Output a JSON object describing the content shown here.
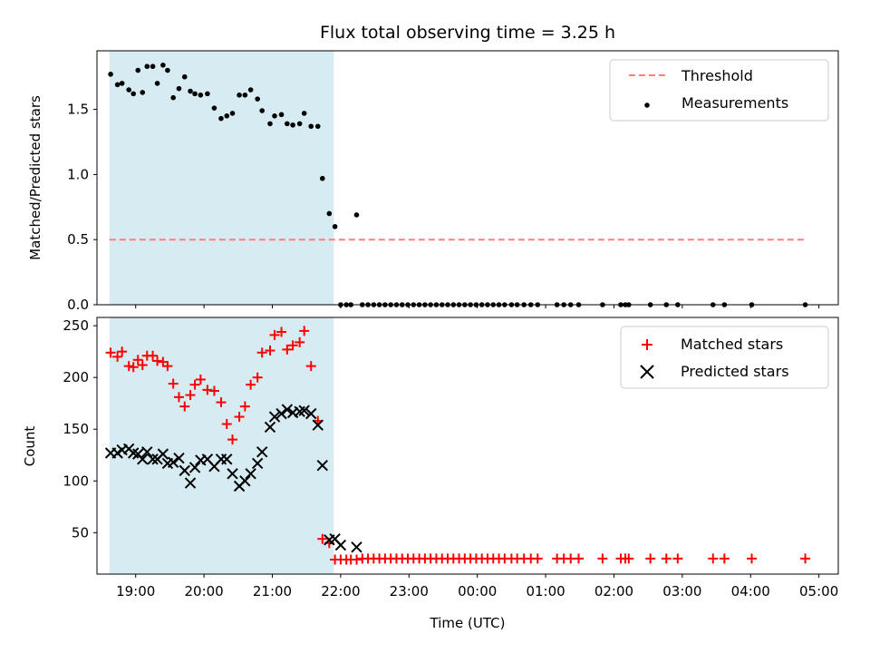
{
  "chart_data": [
    {
      "type": "scatter",
      "title": "Flux total observing time = 3.25 h",
      "ylabel": "Matched/Predicted stars",
      "xlabel": "",
      "xlim": [
        "18:26",
        "05:17"
      ],
      "ylim": [
        0,
        1.95
      ],
      "yticks": [
        "0.0",
        "0.5",
        "1.0",
        "1.5"
      ],
      "shaded_region": [
        "18:37",
        "21:54"
      ],
      "shade_color": "#add8e6",
      "threshold": {
        "name": "Threshold",
        "value": 0.5,
        "x_range": [
          "18:37",
          "04:48"
        ],
        "color": "#ff7f7f"
      },
      "legend": {
        "placement": "top-right",
        "entries": [
          "Threshold",
          "Measurements"
        ]
      },
      "series": [
        {
          "name": "Measurements",
          "color": "#000000",
          "points": [
            [
              "18:38",
              1.77
            ],
            [
              "18:44",
              1.69
            ],
            [
              "18:48",
              1.7
            ],
            [
              "18:54",
              1.65
            ],
            [
              "18:58",
              1.62
            ],
            [
              "19:02",
              1.8
            ],
            [
              "19:06",
              1.63
            ],
            [
              "19:10",
              1.83
            ],
            [
              "19:15",
              1.83
            ],
            [
              "19:19",
              1.7
            ],
            [
              "19:24",
              1.84
            ],
            [
              "19:28",
              1.8
            ],
            [
              "19:33",
              1.59
            ],
            [
              "19:38",
              1.66
            ],
            [
              "19:43",
              1.75
            ],
            [
              "19:48",
              1.64
            ],
            [
              "19:52",
              1.62
            ],
            [
              "19:57",
              1.61
            ],
            [
              "20:03",
              1.62
            ],
            [
              "20:09",
              1.51
            ],
            [
              "20:15",
              1.43
            ],
            [
              "20:20",
              1.45
            ],
            [
              "20:25",
              1.47
            ],
            [
              "20:31",
              1.61
            ],
            [
              "20:36",
              1.61
            ],
            [
              "20:41",
              1.65
            ],
            [
              "20:47",
              1.58
            ],
            [
              "20:51",
              1.49
            ],
            [
              "20:58",
              1.39
            ],
            [
              "21:02",
              1.45
            ],
            [
              "21:08",
              1.46
            ],
            [
              "21:13",
              1.39
            ],
            [
              "21:18",
              1.38
            ],
            [
              "21:24",
              1.39
            ],
            [
              "21:28",
              1.47
            ],
            [
              "21:34",
              1.37
            ],
            [
              "21:40",
              1.37
            ],
            [
              "21:44",
              0.97
            ],
            [
              "21:50",
              0.7
            ],
            [
              "21:55",
              0.6
            ],
            [
              "22:00",
              0.0
            ],
            [
              "22:05",
              0.0
            ],
            [
              "22:09",
              0.0
            ],
            [
              "22:14",
              0.69
            ],
            [
              "22:19",
              0.0
            ],
            [
              "22:24",
              0.0
            ],
            [
              "22:29",
              0.0
            ],
            [
              "22:34",
              0.0
            ],
            [
              "22:39",
              0.0
            ],
            [
              "22:44",
              0.0
            ],
            [
              "22:49",
              0.0
            ],
            [
              "22:54",
              0.0
            ],
            [
              "22:59",
              0.0
            ],
            [
              "23:04",
              0.0
            ],
            [
              "23:09",
              0.0
            ],
            [
              "23:14",
              0.0
            ],
            [
              "23:19",
              0.0
            ],
            [
              "23:24",
              0.0
            ],
            [
              "23:29",
              0.0
            ],
            [
              "23:34",
              0.0
            ],
            [
              "23:39",
              0.0
            ],
            [
              "23:44",
              0.0
            ],
            [
              "23:49",
              0.0
            ],
            [
              "23:54",
              0.0
            ],
            [
              "23:59",
              0.0
            ],
            [
              "00:04",
              0.0
            ],
            [
              "00:09",
              0.0
            ],
            [
              "00:14",
              0.0
            ],
            [
              "00:19",
              0.0
            ],
            [
              "00:24",
              0.0
            ],
            [
              "00:30",
              0.0
            ],
            [
              "00:35",
              0.0
            ],
            [
              "00:41",
              0.0
            ],
            [
              "00:47",
              0.0
            ],
            [
              "00:53",
              0.0
            ],
            [
              "01:10",
              0.0
            ],
            [
              "01:16",
              0.0
            ],
            [
              "01:22",
              0.0
            ],
            [
              "01:29",
              0.0
            ],
            [
              "01:50",
              0.0
            ],
            [
              "02:06",
              0.0
            ],
            [
              "02:10",
              0.0
            ],
            [
              "02:13",
              0.0
            ],
            [
              "02:32",
              0.0
            ],
            [
              "02:46",
              0.0
            ],
            [
              "02:56",
              0.0
            ],
            [
              "03:27",
              0.0
            ],
            [
              "03:37",
              0.0
            ],
            [
              "04:01",
              0.0
            ],
            [
              "04:48",
              0.0
            ]
          ]
        }
      ]
    },
    {
      "type": "scatter",
      "title": "",
      "xlabel": "Time (UTC)",
      "ylabel": "Count",
      "xlim": [
        "18:26",
        "05:17"
      ],
      "ylim": [
        10,
        258
      ],
      "xticks": [
        "19:00",
        "20:00",
        "21:00",
        "22:00",
        "23:00",
        "00:00",
        "01:00",
        "02:00",
        "03:00",
        "04:00",
        "05:00"
      ],
      "yticks": [
        "50",
        "100",
        "150",
        "200",
        "250"
      ],
      "shaded_region": [
        "18:37",
        "21:54"
      ],
      "shade_color": "#add8e6",
      "legend": {
        "placement": "top-right",
        "entries": [
          "Matched stars",
          "Predicted stars"
        ]
      },
      "series": [
        {
          "name": "Matched stars",
          "marker": "+",
          "color": "#ff0000",
          "points": [
            [
              "18:38",
              224
            ],
            [
              "18:44",
              220
            ],
            [
              "18:48",
              225
            ],
            [
              "18:54",
              211
            ],
            [
              "18:58",
              210
            ],
            [
              "19:02",
              217
            ],
            [
              "19:06",
              212
            ],
            [
              "19:10",
              221
            ],
            [
              "19:15",
              221
            ],
            [
              "19:19",
              216
            ],
            [
              "19:24",
              215
            ],
            [
              "19:28",
              211
            ],
            [
              "19:33",
              194
            ],
            [
              "19:38",
              181
            ],
            [
              "19:43",
              172
            ],
            [
              "19:48",
              183
            ],
            [
              "19:52",
              193
            ],
            [
              "19:57",
              198
            ],
            [
              "20:03",
              188
            ],
            [
              "20:09",
              187
            ],
            [
              "20:15",
              176
            ],
            [
              "20:20",
              155
            ],
            [
              "20:25",
              140
            ],
            [
              "20:31",
              162
            ],
            [
              "20:36",
              172
            ],
            [
              "20:41",
              193
            ],
            [
              "20:47",
              200
            ],
            [
              "20:51",
              224
            ],
            [
              "20:58",
              226
            ],
            [
              "21:02",
              241
            ],
            [
              "21:08",
              244
            ],
            [
              "21:13",
              227
            ],
            [
              "21:18",
              231
            ],
            [
              "21:24",
              234
            ],
            [
              "21:28",
              245
            ],
            [
              "21:34",
              211
            ],
            [
              "21:40",
              158
            ],
            [
              "21:44",
              44
            ],
            [
              "21:50",
              40
            ],
            [
              "21:55",
              24
            ],
            [
              "22:00",
              24
            ],
            [
              "22:05",
              24
            ],
            [
              "22:09",
              24
            ],
            [
              "22:14",
              24
            ],
            [
              "22:19",
              25
            ],
            [
              "22:24",
              25
            ],
            [
              "22:29",
              25
            ],
            [
              "22:34",
              25
            ],
            [
              "22:39",
              25
            ],
            [
              "22:44",
              25
            ],
            [
              "22:49",
              25
            ],
            [
              "22:54",
              25
            ],
            [
              "22:59",
              25
            ],
            [
              "23:04",
              25
            ],
            [
              "23:09",
              25
            ],
            [
              "23:14",
              25
            ],
            [
              "23:19",
              25
            ],
            [
              "23:24",
              25
            ],
            [
              "23:29",
              25
            ],
            [
              "23:34",
              25
            ],
            [
              "23:39",
              25
            ],
            [
              "23:44",
              25
            ],
            [
              "23:49",
              25
            ],
            [
              "23:54",
              25
            ],
            [
              "23:59",
              25
            ],
            [
              "00:04",
              25
            ],
            [
              "00:09",
              25
            ],
            [
              "00:14",
              25
            ],
            [
              "00:19",
              25
            ],
            [
              "00:24",
              25
            ],
            [
              "00:30",
              25
            ],
            [
              "00:35",
              25
            ],
            [
              "00:41",
              25
            ],
            [
              "00:47",
              25
            ],
            [
              "00:53",
              25
            ],
            [
              "01:10",
              25
            ],
            [
              "01:16",
              25
            ],
            [
              "01:22",
              25
            ],
            [
              "01:29",
              25
            ],
            [
              "01:50",
              25
            ],
            [
              "02:06",
              25
            ],
            [
              "02:10",
              25
            ],
            [
              "02:13",
              25
            ],
            [
              "02:32",
              25
            ],
            [
              "02:46",
              25
            ],
            [
              "02:56",
              25
            ],
            [
              "03:27",
              25
            ],
            [
              "03:37",
              25
            ],
            [
              "04:01",
              25
            ],
            [
              "04:48",
              25
            ]
          ]
        },
        {
          "name": "Predicted stars",
          "marker": "x",
          "color": "#000000",
          "points": [
            [
              "18:38",
              127
            ],
            [
              "18:44",
              127
            ],
            [
              "18:48",
              130
            ],
            [
              "18:54",
              131
            ],
            [
              "18:58",
              127
            ],
            [
              "19:02",
              126
            ],
            [
              "19:06",
              121
            ],
            [
              "19:10",
              128
            ],
            [
              "19:15",
              121
            ],
            [
              "19:19",
              121
            ],
            [
              "19:24",
              126
            ],
            [
              "19:28",
              117
            ],
            [
              "19:33",
              118
            ],
            [
              "19:38",
              122
            ],
            [
              "19:43",
              110
            ],
            [
              "19:48",
              98
            ],
            [
              "19:52",
              113
            ],
            [
              "19:57",
              120
            ],
            [
              "20:03",
              121
            ],
            [
              "20:09",
              114
            ],
            [
              "20:15",
              121
            ],
            [
              "20:20",
              121
            ],
            [
              "20:25",
              107
            ],
            [
              "20:31",
              95
            ],
            [
              "20:36",
              100
            ],
            [
              "20:41",
              107
            ],
            [
              "20:47",
              117
            ],
            [
              "20:51",
              128
            ],
            [
              "20:58",
              152
            ],
            [
              "21:02",
              162
            ],
            [
              "21:08",
              165
            ],
            [
              "21:13",
              169
            ],
            [
              "21:18",
              166
            ],
            [
              "21:24",
              167
            ],
            [
              "21:28",
              168
            ],
            [
              "21:34",
              165
            ],
            [
              "21:40",
              154
            ],
            [
              "21:44",
              115
            ],
            [
              "21:50",
              43
            ],
            [
              "21:55",
              44
            ],
            [
              "22:00",
              38
            ],
            [
              "22:14",
              36
            ]
          ]
        }
      ]
    }
  ]
}
